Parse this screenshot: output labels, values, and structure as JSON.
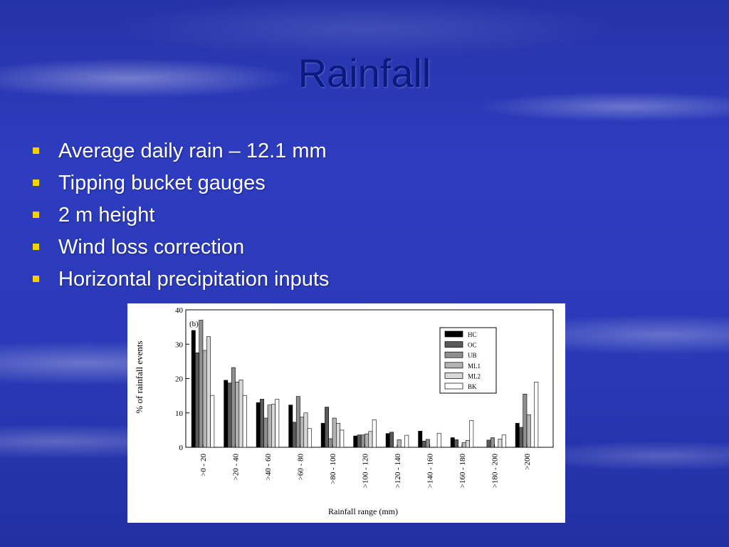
{
  "slide": {
    "title": "Rainfall",
    "bullets": [
      "Average daily rain – 12.1 mm",
      "Tipping bucket gauges",
      "2 m height",
      "Wind loss correction",
      "Horizontal precipitation inputs"
    ],
    "colors": {
      "title": "#0c1a80",
      "bullet_marker": "#f5d100",
      "text": "#ffffff"
    }
  },
  "chart_data": {
    "type": "bar",
    "panel_label": "(b)",
    "xlabel": "Rainfall range (mm)",
    "ylabel": "% of rainfall events",
    "ylim": [
      0,
      40
    ],
    "yticks": [
      0,
      10,
      20,
      30,
      40
    ],
    "grid": false,
    "legend_position": "top-right",
    "categories": [
      ">0 - 20",
      ">20 - 40",
      ">40 - 60",
      ">60 - 80",
      ">80 - 100",
      ">100 - 120",
      ">120 - 140",
      ">140 - 160",
      ">160 - 180",
      ">180 - 200",
      ">200"
    ],
    "series": [
      {
        "name": "HC",
        "color": "#000000",
        "values": [
          34,
          19.5,
          13,
          12.3,
          7,
          3.3,
          4,
          4.7,
          2.8,
          0,
          7
        ]
      },
      {
        "name": "OC",
        "color": "#5a5a5a",
        "values": [
          27.5,
          18.7,
          14,
          7.3,
          11.7,
          3.6,
          4.4,
          1.8,
          2.2,
          2.1,
          5.8
        ]
      },
      {
        "name": "UB",
        "color": "#8f8f8f",
        "values": [
          37,
          23.2,
          8.5,
          14.8,
          2.5,
          3.6,
          0,
          2.3,
          0,
          2.8,
          15.5
        ]
      },
      {
        "name": "ML1",
        "color": "#b3b3b3",
        "values": [
          28.2,
          19,
          12.3,
          8.8,
          8.5,
          3.9,
          2.2,
          0,
          1.4,
          0,
          9.5
        ]
      },
      {
        "name": "ML2",
        "color": "#d9d9d9",
        "values": [
          32.2,
          19.6,
          12.5,
          10,
          7,
          4.6,
          0,
          0,
          2,
          2.4,
          0
        ]
      },
      {
        "name": "BK",
        "color": "#ffffff",
        "values": [
          15.1,
          15.1,
          14,
          5.5,
          5,
          8,
          3.5,
          4.1,
          7.8,
          3.6,
          19
        ]
      }
    ]
  }
}
